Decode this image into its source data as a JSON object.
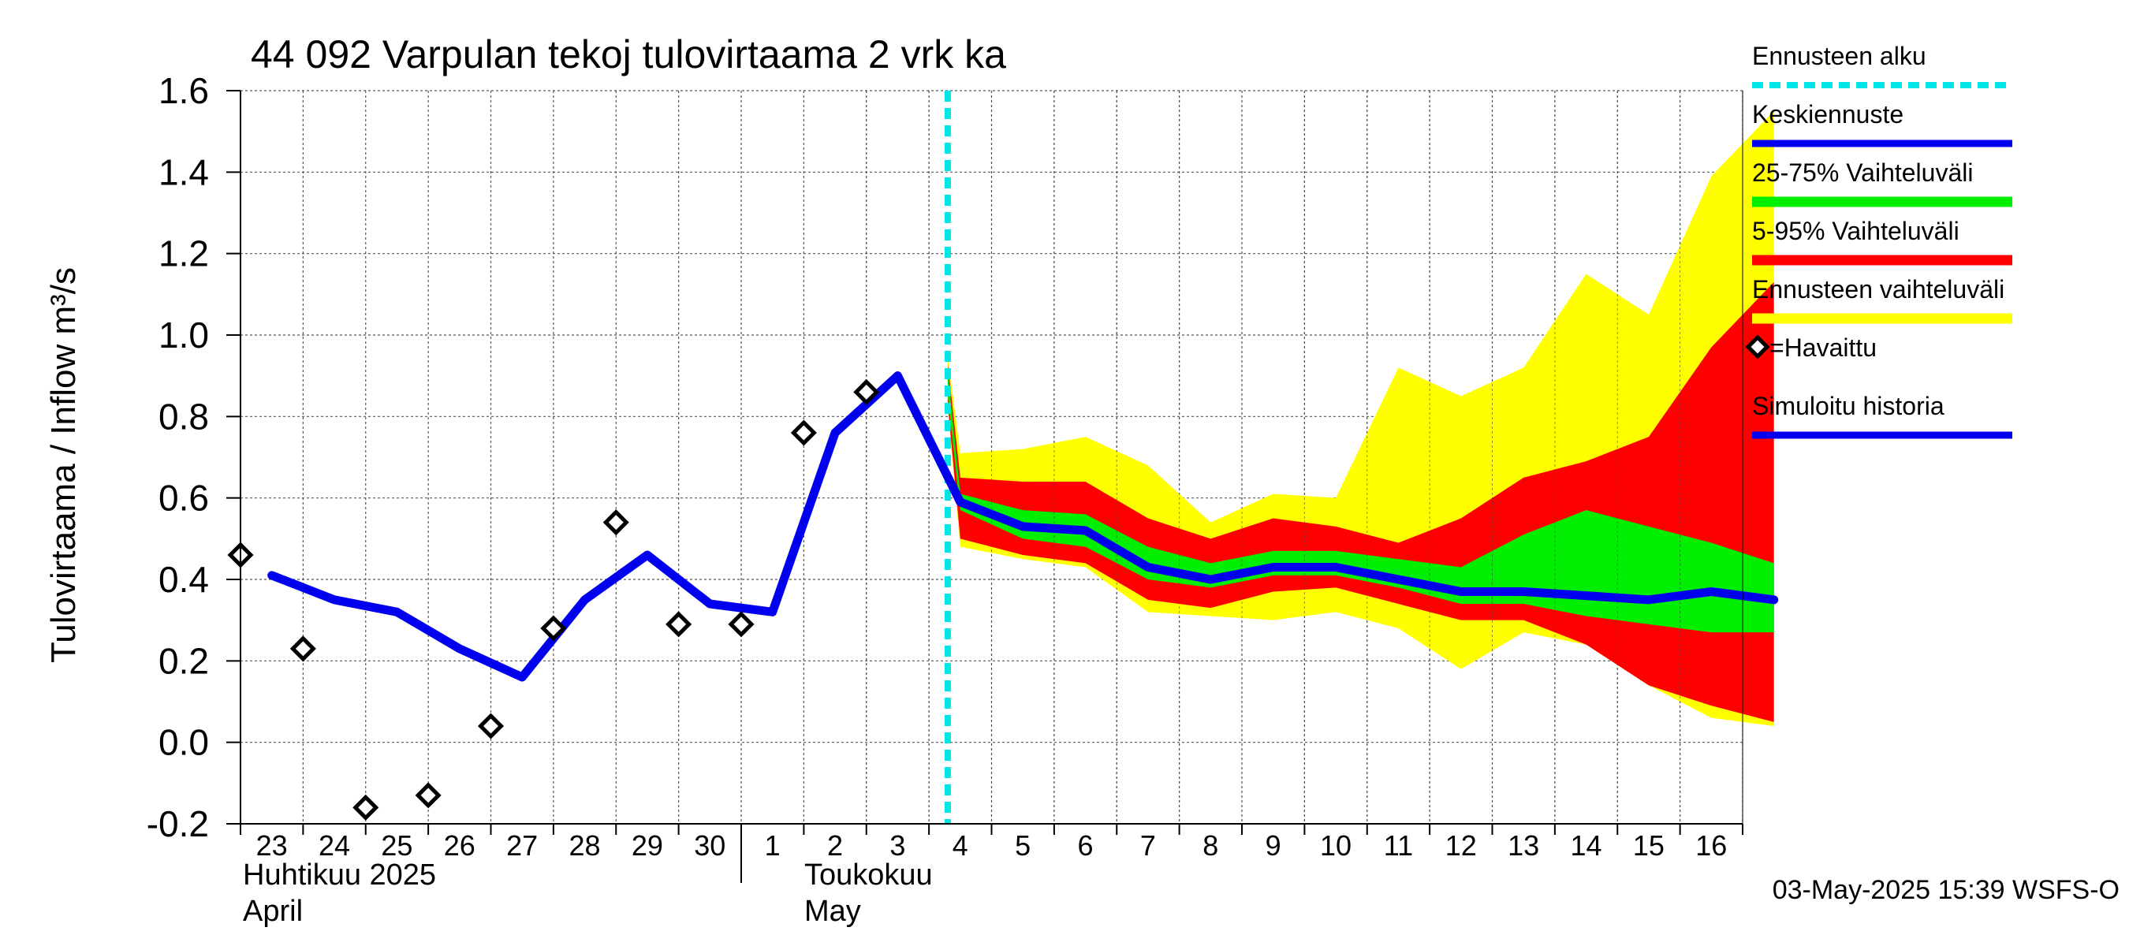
{
  "chart_data": {
    "type": "area",
    "title": "44 092 Varpulan tekoj tulovirtaama 2 vrk ka",
    "ylabel": "Tulovirtaama / Inflow   m³/s",
    "ylim": [
      -0.2,
      1.6
    ],
    "yticks": [
      "-0.2",
      "0.0",
      "0.2",
      "0.4",
      "0.6",
      "0.8",
      "1.0",
      "1.2",
      "1.4",
      "1.6"
    ],
    "x_tick_labels": [
      "23",
      "24",
      "25",
      "26",
      "27",
      "28",
      "29",
      "30",
      "1",
      "2",
      "3",
      "4",
      "5",
      "6",
      "7",
      "8",
      "9",
      "10",
      "11",
      "12",
      "13",
      "14",
      "15",
      "16"
    ],
    "month_labels": {
      "april_fi": "Huhtikuu  2025",
      "april_en": "April",
      "may_fi": "Toukokuu",
      "may_en": "May"
    },
    "forecast_start_x": 10.8,
    "forecast_x": [
      10.8,
      11,
      12,
      13,
      14,
      15,
      16,
      17,
      18,
      19,
      20,
      21,
      22,
      23,
      24
    ],
    "band_full": {
      "upper": [
        0.95,
        0.71,
        0.72,
        0.75,
        0.68,
        0.54,
        0.61,
        0.6,
        0.92,
        0.85,
        0.92,
        1.15,
        1.05,
        1.39,
        1.55
      ],
      "lower": [
        0.82,
        0.48,
        0.45,
        0.43,
        0.32,
        0.31,
        0.3,
        0.32,
        0.28,
        0.18,
        0.27,
        0.24,
        0.14,
        0.06,
        0.04
      ]
    },
    "band_5_95": {
      "upper": [
        0.93,
        0.65,
        0.64,
        0.64,
        0.55,
        0.5,
        0.55,
        0.53,
        0.49,
        0.55,
        0.65,
        0.69,
        0.75,
        0.97,
        1.13
      ],
      "lower": [
        0.83,
        0.5,
        0.46,
        0.44,
        0.35,
        0.33,
        0.37,
        0.38,
        0.34,
        0.3,
        0.3,
        0.24,
        0.14,
        0.09,
        0.05
      ]
    },
    "band_25_75": {
      "upper": [
        0.91,
        0.61,
        0.57,
        0.56,
        0.48,
        0.44,
        0.47,
        0.47,
        0.45,
        0.43,
        0.51,
        0.57,
        0.53,
        0.49,
        0.44
      ],
      "lower": [
        0.85,
        0.57,
        0.5,
        0.48,
        0.4,
        0.38,
        0.41,
        0.41,
        0.38,
        0.34,
        0.34,
        0.31,
        0.29,
        0.27,
        0.27
      ]
    },
    "series": [
      {
        "name": "Simuloitu historia",
        "x": [
          0,
          1,
          2,
          3,
          4,
          5,
          6,
          7,
          8,
          9,
          10
        ],
        "values": [
          0.41,
          0.35,
          0.32,
          0.23,
          0.16,
          0.35,
          0.46,
          0.34,
          0.32,
          0.76,
          0.9
        ]
      },
      {
        "name": "Keskiennuste",
        "x": [
          10,
          11,
          12,
          13,
          14,
          15,
          16,
          17,
          18,
          19,
          20,
          21,
          22,
          23,
          24
        ],
        "values": [
          0.9,
          0.59,
          0.53,
          0.52,
          0.43,
          0.4,
          0.43,
          0.43,
          0.4,
          0.37,
          0.37,
          0.36,
          0.35,
          0.37,
          0.35
        ]
      }
    ],
    "observed": {
      "x": [
        0,
        1,
        2,
        3,
        4,
        5,
        6,
        7,
        8,
        9,
        10
      ],
      "values": [
        0.46,
        0.23,
        -0.16,
        -0.13,
        0.04,
        0.28,
        0.54,
        0.29,
        0.29,
        0.76,
        0.86
      ]
    },
    "legend": [
      {
        "label": "Ennusteen alku",
        "color": "#00e5e5",
        "style": "dashed"
      },
      {
        "label": "Keskiennuste",
        "color": "#0000ee",
        "style": "line"
      },
      {
        "label": "25-75% Vaihteluväli",
        "color": "#00ee00",
        "style": "band"
      },
      {
        "label": "5-95% Vaihteluväli",
        "color": "#ff0000",
        "style": "band"
      },
      {
        "label": "Ennusteen vaihteluväli",
        "color": "#ffff00",
        "style": "band"
      },
      {
        "label": "=Havaittu",
        "color": "#000000",
        "style": "marker"
      },
      {
        "label": "Simuloitu historia",
        "color": "#0000ee",
        "style": "line"
      }
    ],
    "legend_position": "right",
    "grid": true,
    "colors": {
      "full_band": "#ffff00",
      "band_5_95": "#ff0000",
      "band_25_75": "#00ee00",
      "mean_line": "#0000ee",
      "forecast_start": "#00e5e5"
    },
    "footer": "03-May-2025 15:39 WSFS-O"
  }
}
